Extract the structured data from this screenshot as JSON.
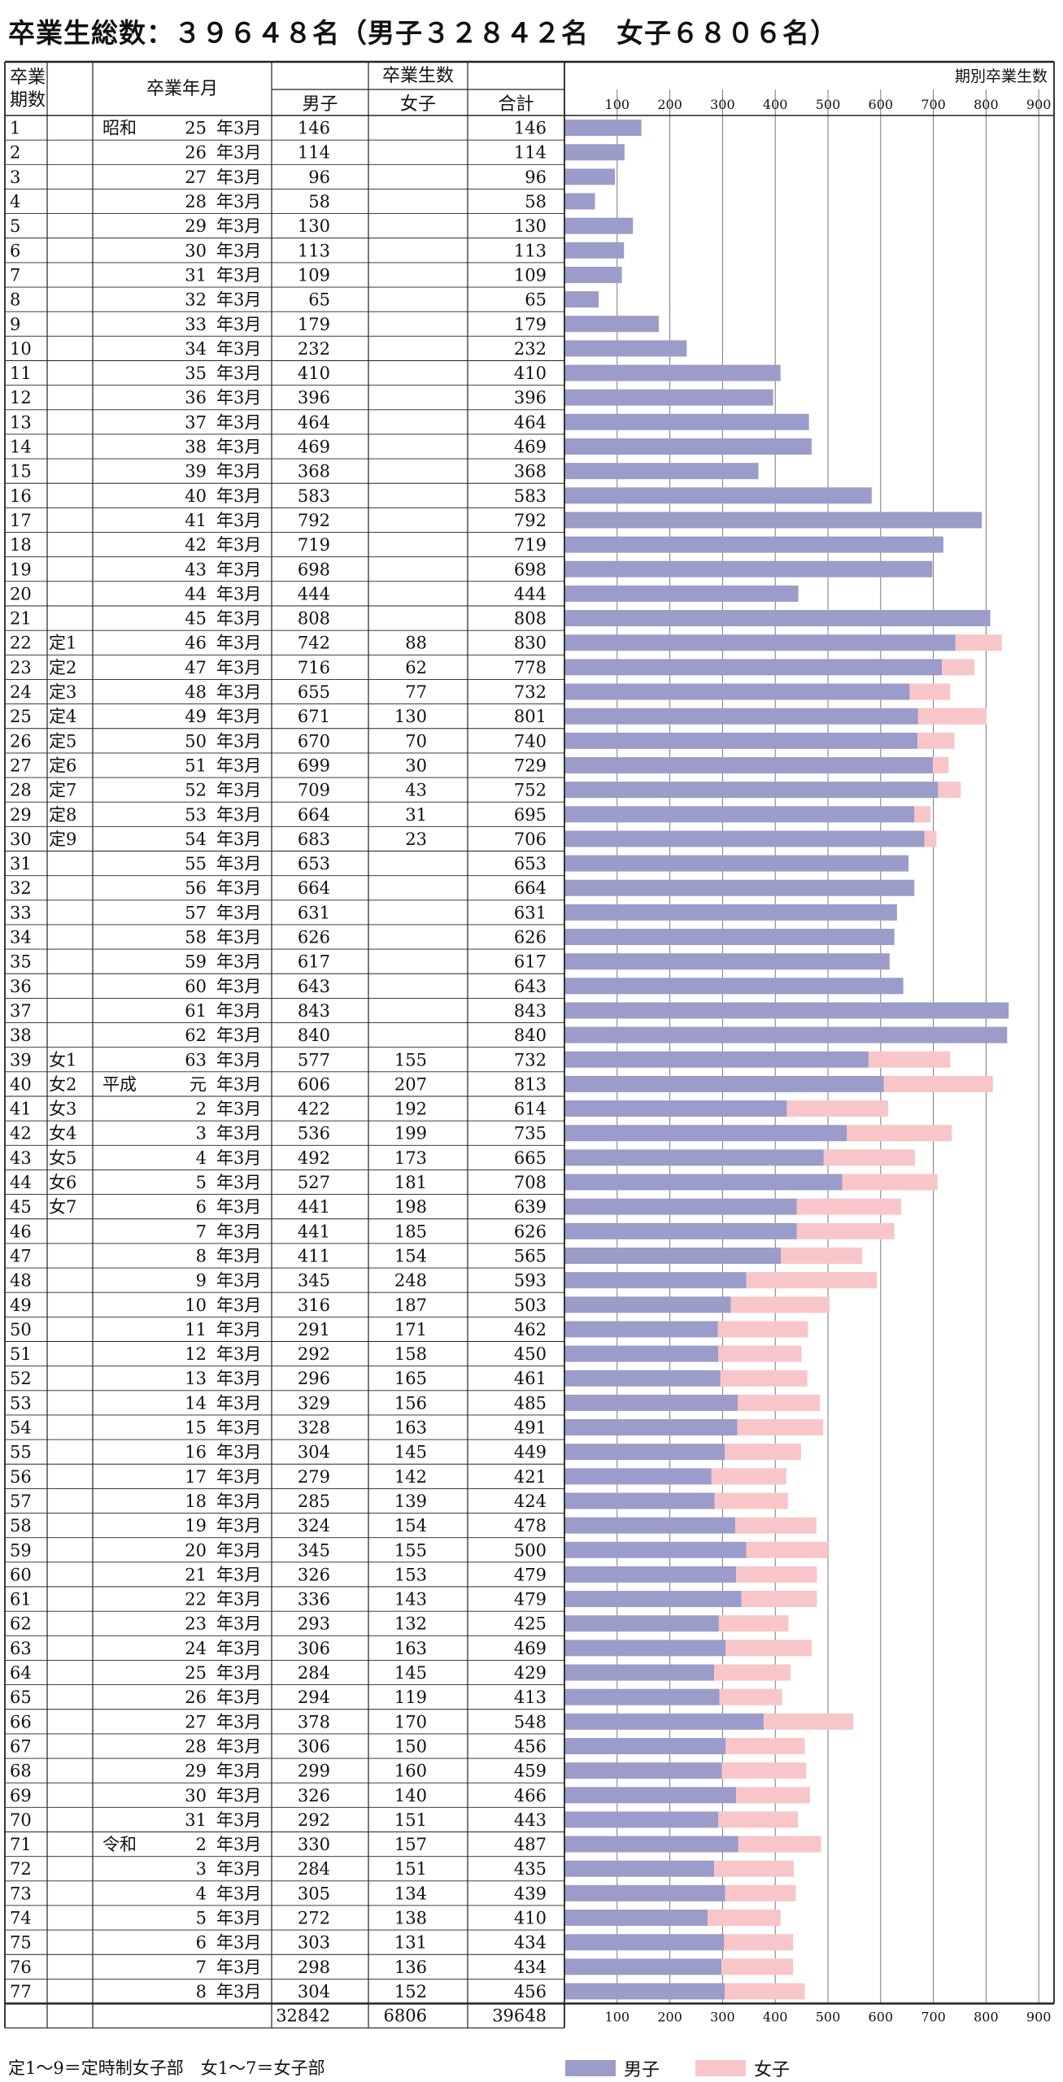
{
  "page_title": "卒業生総数：３９６４８名（男子３２８４２名　女子６８０６名）",
  "table": {
    "header_term": [
      "卒業",
      "期数"
    ],
    "header_date": "卒業年月",
    "header_graduates": "卒業生数",
    "header_male": "男子",
    "header_female": "女子",
    "header_total": "合計",
    "rows": [
      {
        "term": "1",
        "sub": "",
        "era": "昭和",
        "year": "25",
        "suffix": "年3月",
        "male": 146,
        "female": null,
        "total": 146
      },
      {
        "term": "2",
        "sub": "",
        "era": "",
        "year": "26",
        "suffix": "年3月",
        "male": 114,
        "female": null,
        "total": 114
      },
      {
        "term": "3",
        "sub": "",
        "era": "",
        "year": "27",
        "suffix": "年3月",
        "male": 96,
        "female": null,
        "total": 96
      },
      {
        "term": "4",
        "sub": "",
        "era": "",
        "year": "28",
        "suffix": "年3月",
        "male": 58,
        "female": null,
        "total": 58
      },
      {
        "term": "5",
        "sub": "",
        "era": "",
        "year": "29",
        "suffix": "年3月",
        "male": 130,
        "female": null,
        "total": 130
      },
      {
        "term": "6",
        "sub": "",
        "era": "",
        "year": "30",
        "suffix": "年3月",
        "male": 113,
        "female": null,
        "total": 113
      },
      {
        "term": "7",
        "sub": "",
        "era": "",
        "year": "31",
        "suffix": "年3月",
        "male": 109,
        "female": null,
        "total": 109
      },
      {
        "term": "8",
        "sub": "",
        "era": "",
        "year": "32",
        "suffix": "年3月",
        "male": 65,
        "female": null,
        "total": 65
      },
      {
        "term": "9",
        "sub": "",
        "era": "",
        "year": "33",
        "suffix": "年3月",
        "male": 179,
        "female": null,
        "total": 179
      },
      {
        "term": "10",
        "sub": "",
        "era": "",
        "year": "34",
        "suffix": "年3月",
        "male": 232,
        "female": null,
        "total": 232
      },
      {
        "term": "11",
        "sub": "",
        "era": "",
        "year": "35",
        "suffix": "年3月",
        "male": 410,
        "female": null,
        "total": 410
      },
      {
        "term": "12",
        "sub": "",
        "era": "",
        "year": "36",
        "suffix": "年3月",
        "male": 396,
        "female": null,
        "total": 396
      },
      {
        "term": "13",
        "sub": "",
        "era": "",
        "year": "37",
        "suffix": "年3月",
        "male": 464,
        "female": null,
        "total": 464
      },
      {
        "term": "14",
        "sub": "",
        "era": "",
        "year": "38",
        "suffix": "年3月",
        "male": 469,
        "female": null,
        "total": 469
      },
      {
        "term": "15",
        "sub": "",
        "era": "",
        "year": "39",
        "suffix": "年3月",
        "male": 368,
        "female": null,
        "total": 368
      },
      {
        "term": "16",
        "sub": "",
        "era": "",
        "year": "40",
        "suffix": "年3月",
        "male": 583,
        "female": null,
        "total": 583
      },
      {
        "term": "17",
        "sub": "",
        "era": "",
        "year": "41",
        "suffix": "年3月",
        "male": 792,
        "female": null,
        "total": 792
      },
      {
        "term": "18",
        "sub": "",
        "era": "",
        "year": "42",
        "suffix": "年3月",
        "male": 719,
        "female": null,
        "total": 719
      },
      {
        "term": "19",
        "sub": "",
        "era": "",
        "year": "43",
        "suffix": "年3月",
        "male": 698,
        "female": null,
        "total": 698
      },
      {
        "term": "20",
        "sub": "",
        "era": "",
        "year": "44",
        "suffix": "年3月",
        "male": 444,
        "female": null,
        "total": 444
      },
      {
        "term": "21",
        "sub": "",
        "era": "",
        "year": "45",
        "suffix": "年3月",
        "male": 808,
        "female": null,
        "total": 808
      },
      {
        "term": "22",
        "sub": "定1",
        "era": "",
        "year": "46",
        "suffix": "年3月",
        "male": 742,
        "female": 88,
        "total": 830
      },
      {
        "term": "23",
        "sub": "定2",
        "era": "",
        "year": "47",
        "suffix": "年3月",
        "male": 716,
        "female": 62,
        "total": 778
      },
      {
        "term": "24",
        "sub": "定3",
        "era": "",
        "year": "48",
        "suffix": "年3月",
        "male": 655,
        "female": 77,
        "total": 732
      },
      {
        "term": "25",
        "sub": "定4",
        "era": "",
        "year": "49",
        "suffix": "年3月",
        "male": 671,
        "female": 130,
        "total": 801
      },
      {
        "term": "26",
        "sub": "定5",
        "era": "",
        "year": "50",
        "suffix": "年3月",
        "male": 670,
        "female": 70,
        "total": 740
      },
      {
        "term": "27",
        "sub": "定6",
        "era": "",
        "year": "51",
        "suffix": "年3月",
        "male": 699,
        "female": 30,
        "total": 729
      },
      {
        "term": "28",
        "sub": "定7",
        "era": "",
        "year": "52",
        "suffix": "年3月",
        "male": 709,
        "female": 43,
        "total": 752
      },
      {
        "term": "29",
        "sub": "定8",
        "era": "",
        "year": "53",
        "suffix": "年3月",
        "male": 664,
        "female": 31,
        "total": 695
      },
      {
        "term": "30",
        "sub": "定9",
        "era": "",
        "year": "54",
        "suffix": "年3月",
        "male": 683,
        "female": 23,
        "total": 706
      },
      {
        "term": "31",
        "sub": "",
        "era": "",
        "year": "55",
        "suffix": "年3月",
        "male": 653,
        "female": null,
        "total": 653
      },
      {
        "term": "32",
        "sub": "",
        "era": "",
        "year": "56",
        "suffix": "年3月",
        "male": 664,
        "female": null,
        "total": 664
      },
      {
        "term": "33",
        "sub": "",
        "era": "",
        "year": "57",
        "suffix": "年3月",
        "male": 631,
        "female": null,
        "total": 631
      },
      {
        "term": "34",
        "sub": "",
        "era": "",
        "year": "58",
        "suffix": "年3月",
        "male": 626,
        "female": null,
        "total": 626
      },
      {
        "term": "35",
        "sub": "",
        "era": "",
        "year": "59",
        "suffix": "年3月",
        "male": 617,
        "female": null,
        "total": 617
      },
      {
        "term": "36",
        "sub": "",
        "era": "",
        "year": "60",
        "suffix": "年3月",
        "male": 643,
        "female": null,
        "total": 643
      },
      {
        "term": "37",
        "sub": "",
        "era": "",
        "year": "61",
        "suffix": "年3月",
        "male": 843,
        "female": null,
        "total": 843
      },
      {
        "term": "38",
        "sub": "",
        "era": "",
        "year": "62",
        "suffix": "年3月",
        "male": 840,
        "female": null,
        "total": 840
      },
      {
        "term": "39",
        "sub": "女1",
        "era": "",
        "year": "63",
        "suffix": "年3月",
        "male": 577,
        "female": 155,
        "total": 732
      },
      {
        "term": "40",
        "sub": "女2",
        "era": "平成",
        "year": "元",
        "suffix": "年3月",
        "male": 606,
        "female": 207,
        "total": 813
      },
      {
        "term": "41",
        "sub": "女3",
        "era": "",
        "year": "2",
        "suffix": "年3月",
        "male": 422,
        "female": 192,
        "total": 614
      },
      {
        "term": "42",
        "sub": "女4",
        "era": "",
        "year": "3",
        "suffix": "年3月",
        "male": 536,
        "female": 199,
        "total": 735
      },
      {
        "term": "43",
        "sub": "女5",
        "era": "",
        "year": "4",
        "suffix": "年3月",
        "male": 492,
        "female": 173,
        "total": 665
      },
      {
        "term": "44",
        "sub": "女6",
        "era": "",
        "year": "5",
        "suffix": "年3月",
        "male": 527,
        "female": 181,
        "total": 708
      },
      {
        "term": "45",
        "sub": "女7",
        "era": "",
        "year": "6",
        "suffix": "年3月",
        "male": 441,
        "female": 198,
        "total": 639
      },
      {
        "term": "46",
        "sub": "",
        "era": "",
        "year": "7",
        "suffix": "年3月",
        "male": 441,
        "female": 185,
        "total": 626
      },
      {
        "term": "47",
        "sub": "",
        "era": "",
        "year": "8",
        "suffix": "年3月",
        "male": 411,
        "female": 154,
        "total": 565
      },
      {
        "term": "48",
        "sub": "",
        "era": "",
        "year": "9",
        "suffix": "年3月",
        "male": 345,
        "female": 248,
        "total": 593
      },
      {
        "term": "49",
        "sub": "",
        "era": "",
        "year": "10",
        "suffix": "年3月",
        "male": 316,
        "female": 187,
        "total": 503
      },
      {
        "term": "50",
        "sub": "",
        "era": "",
        "year": "11",
        "suffix": "年3月",
        "male": 291,
        "female": 171,
        "total": 462
      },
      {
        "term": "51",
        "sub": "",
        "era": "",
        "year": "12",
        "suffix": "年3月",
        "male": 292,
        "female": 158,
        "total": 450
      },
      {
        "term": "52",
        "sub": "",
        "era": "",
        "year": "13",
        "suffix": "年3月",
        "male": 296,
        "female": 165,
        "total": 461
      },
      {
        "term": "53",
        "sub": "",
        "era": "",
        "year": "14",
        "suffix": "年3月",
        "male": 329,
        "female": 156,
        "total": 485
      },
      {
        "term": "54",
        "sub": "",
        "era": "",
        "year": "15",
        "suffix": "年3月",
        "male": 328,
        "female": 163,
        "total": 491
      },
      {
        "term": "55",
        "sub": "",
        "era": "",
        "year": "16",
        "suffix": "年3月",
        "male": 304,
        "female": 145,
        "total": 449
      },
      {
        "term": "56",
        "sub": "",
        "era": "",
        "year": "17",
        "suffix": "年3月",
        "male": 279,
        "female": 142,
        "total": 421
      },
      {
        "term": "57",
        "sub": "",
        "era": "",
        "year": "18",
        "suffix": "年3月",
        "male": 285,
        "female": 139,
        "total": 424
      },
      {
        "term": "58",
        "sub": "",
        "era": "",
        "year": "19",
        "suffix": "年3月",
        "male": 324,
        "female": 154,
        "total": 478
      },
      {
        "term": "59",
        "sub": "",
        "era": "",
        "year": "20",
        "suffix": "年3月",
        "male": 345,
        "female": 155,
        "total": 500
      },
      {
        "term": "60",
        "sub": "",
        "era": "",
        "year": "21",
        "suffix": "年3月",
        "male": 326,
        "female": 153,
        "total": 479
      },
      {
        "term": "61",
        "sub": "",
        "era": "",
        "year": "22",
        "suffix": "年3月",
        "male": 336,
        "female": 143,
        "total": 479
      },
      {
        "term": "62",
        "sub": "",
        "era": "",
        "year": "23",
        "suffix": "年3月",
        "male": 293,
        "female": 132,
        "total": 425
      },
      {
        "term": "63",
        "sub": "",
        "era": "",
        "year": "24",
        "suffix": "年3月",
        "male": 306,
        "female": 163,
        "total": 469
      },
      {
        "term": "64",
        "sub": "",
        "era": "",
        "year": "25",
        "suffix": "年3月",
        "male": 284,
        "female": 145,
        "total": 429
      },
      {
        "term": "65",
        "sub": "",
        "era": "",
        "year": "26",
        "suffix": "年3月",
        "male": 294,
        "female": 119,
        "total": 413
      },
      {
        "term": "66",
        "sub": "",
        "era": "",
        "year": "27",
        "suffix": "年3月",
        "male": 378,
        "female": 170,
        "total": 548
      },
      {
        "term": "67",
        "sub": "",
        "era": "",
        "year": "28",
        "suffix": "年3月",
        "male": 306,
        "female": 150,
        "total": 456
      },
      {
        "term": "68",
        "sub": "",
        "era": "",
        "year": "29",
        "suffix": "年3月",
        "male": 299,
        "female": 160,
        "total": 459
      },
      {
        "term": "69",
        "sub": "",
        "era": "",
        "year": "30",
        "suffix": "年3月",
        "male": 326,
        "female": 140,
        "total": 466
      },
      {
        "term": "70",
        "sub": "",
        "era": "",
        "year": "31",
        "suffix": "年3月",
        "male": 292,
        "female": 151,
        "total": 443
      },
      {
        "term": "71",
        "sub": "",
        "era": "令和",
        "year": "2",
        "suffix": "年3月",
        "male": 330,
        "female": 157,
        "total": 487
      },
      {
        "term": "72",
        "sub": "",
        "era": "",
        "year": "3",
        "suffix": "年3月",
        "male": 284,
        "female": 151,
        "total": 435
      },
      {
        "term": "73",
        "sub": "",
        "era": "",
        "year": "4",
        "suffix": "年3月",
        "male": 305,
        "female": 134,
        "total": 439
      },
      {
        "term": "74",
        "sub": "",
        "era": "",
        "year": "5",
        "suffix": "年3月",
        "male": 272,
        "female": 138,
        "total": 410
      },
      {
        "term": "75",
        "sub": "",
        "era": "",
        "year": "6",
        "suffix": "年3月",
        "male": 303,
        "female": 131,
        "total": 434
      },
      {
        "term": "76",
        "sub": "",
        "era": "",
        "year": "7",
        "suffix": "年3月",
        "male": 298,
        "female": 136,
        "total": 434
      },
      {
        "term": "77",
        "sub": "",
        "era": "",
        "year": "8",
        "suffix": "年3月",
        "male": 304,
        "female": 152,
        "total": 456
      }
    ],
    "totals": {
      "male": 32842,
      "female": 6806,
      "total": 39648
    }
  },
  "chart_data": {
    "type": "bar",
    "orientation": "horizontal",
    "stacked": true,
    "title": "期別卒業生数",
    "xlim": [
      0,
      950
    ],
    "xticks": [
      100,
      200,
      300,
      400,
      500,
      600,
      700,
      800,
      900
    ],
    "grid": true,
    "legend_position": "bottom",
    "series": [
      {
        "name": "男子",
        "color": "#9b9cca"
      },
      {
        "name": "女子",
        "color": "#f8c6c9"
      }
    ]
  },
  "footnote": "定1～9＝定時制女子部　女1～7＝女子部",
  "colors": {
    "male": "#9b9cca",
    "female": "#f8c6c9",
    "line": "#222222",
    "grid": "#666666"
  }
}
